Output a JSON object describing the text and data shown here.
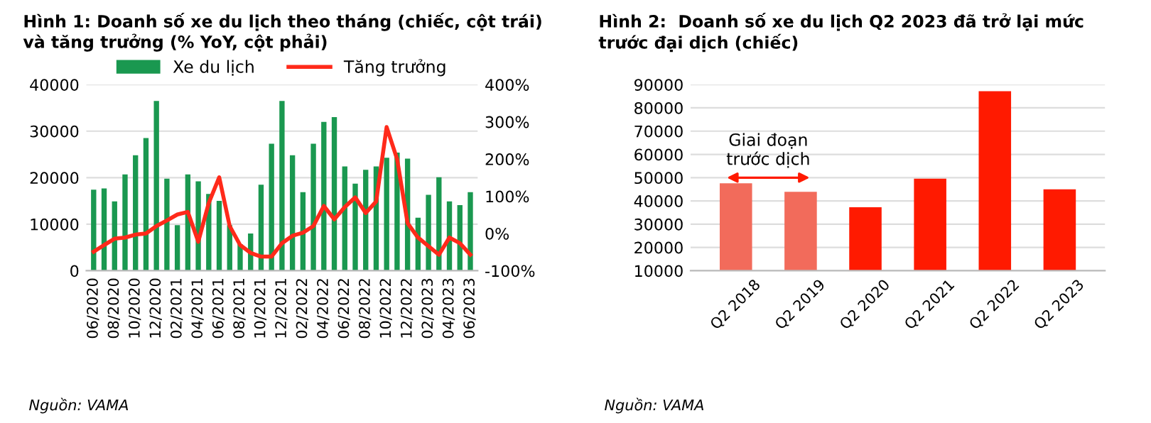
{
  "chart_data": [
    {
      "type": "bar",
      "title": "Hình 1: Doanh số xe du lịch theo tháng (chiếc, cột trái) và tăng trưởng (% YoY, cột phải)",
      "categories": [
        "06/2020",
        null,
        "08/2020",
        null,
        "10/2020",
        null,
        "12/2020",
        null,
        "02/2021",
        null,
        "04/2021",
        null,
        "06/2021",
        null,
        "08/2021",
        null,
        "10/2021",
        null,
        "12/2021",
        null,
        "02/2022",
        null,
        "04/2022",
        null,
        "06/2022",
        null,
        "08/2022",
        null,
        "10/2022",
        null,
        "12/2022",
        null,
        "02/2023",
        null,
        "04/2023",
        null,
        "06/2023"
      ],
      "series": [
        {
          "name": "Xe du lịch",
          "type": "bar",
          "color": "#1a9850",
          "values": [
            17400,
            17700,
            14900,
            20700,
            24800,
            28500,
            36500,
            19800,
            9800,
            20700,
            19200,
            16500,
            15000,
            9800,
            5700,
            8000,
            18500,
            27300,
            36500,
            24800,
            16900,
            27300,
            32000,
            33000,
            22400,
            18700,
            21700,
            22400,
            24300,
            25400,
            24100,
            11400,
            16300,
            20100,
            14900,
            14100,
            16900
          ]
        },
        {
          "name": "Tăng trưởng",
          "type": "line",
          "axis": "y2",
          "color": "#ff2a1a",
          "values": [
            -49,
            -31,
            -14,
            -11,
            -3,
            0,
            20,
            35,
            51,
            58,
            -22,
            82,
            151,
            20,
            -31,
            -52,
            -62,
            -62,
            -26,
            -6,
            2,
            20,
            74,
            38,
            71,
            97,
            55,
            86,
            286,
            200,
            28,
            -11,
            -34,
            -57,
            -11,
            -26,
            -57
          ]
        }
      ],
      "ylim": [
        0,
        40000
      ],
      "yticks": [
        0,
        10000,
        20000,
        30000,
        40000
      ],
      "y2lim": [
        -100,
        400
      ],
      "y2ticks": [
        {
          "value": -100,
          "label": "-100%"
        },
        {
          "value": 0,
          "label": "0%"
        },
        {
          "value": 100,
          "label": "100%"
        },
        {
          "value": 200,
          "label": "200%"
        },
        {
          "value": 300,
          "label": "300%"
        },
        {
          "value": 400,
          "label": "400%"
        }
      ],
      "grid": "y",
      "legend": "top",
      "marker": "none",
      "line_style": "solid",
      "annotations": [
        "Nguồn: VAMA"
      ]
    },
    {
      "type": "bar",
      "title": "Hình 2:  Doanh số xe du lịch Q2 2023 đã trở lại mức trước đại dịch (chiếc)",
      "categories": [
        "Q2 2018",
        "Q2 2019",
        "Q2 2020",
        "Q2 2021",
        "Q2 2022",
        "Q2 2023"
      ],
      "values": [
        47600,
        43900,
        37300,
        49600,
        87200,
        45000
      ],
      "colors": [
        "#f26b5b",
        "#f26b5b",
        "#ff1a00",
        "#ff1a00",
        "#ff1a00",
        "#ff1a00"
      ],
      "ylim": [
        10000,
        90000
      ],
      "yticks": [
        10000,
        20000,
        30000,
        40000,
        50000,
        60000,
        70000,
        80000,
        90000
      ],
      "grid": "y",
      "legend": false,
      "annotations": [
        "Giai đoạn\ntrước dịch",
        "Nguồn: VAMA"
      ]
    }
  ]
}
